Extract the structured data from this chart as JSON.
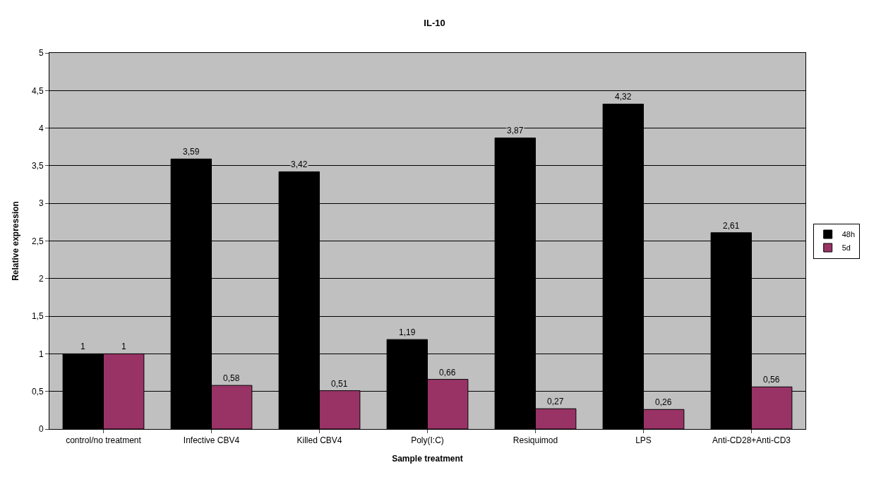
{
  "chart_data": {
    "type": "bar",
    "title": "IL-10",
    "xlabel": "Sample treatment",
    "ylabel": "Relative expression",
    "categories": [
      "control/no treatment",
      "Infective CBV4",
      "Killed CBV4",
      "Poly(I:C)",
      "Resiquimod",
      "LPS",
      "Anti-CD28+Anti-CD3"
    ],
    "series": [
      {
        "name": "48h",
        "color": "#000000",
        "values": [
          1,
          3.59,
          3.42,
          1.19,
          3.87,
          4.32,
          2.61
        ],
        "value_labels": [
          "1",
          "3,59",
          "3,42",
          "1,19",
          "3,87",
          "4,32",
          "2,61"
        ]
      },
      {
        "name": "5d",
        "color": "#993366",
        "values": [
          1,
          0.58,
          0.51,
          0.66,
          0.27,
          0.26,
          0.56
        ],
        "value_labels": [
          "1",
          "0,58",
          "0,51",
          "0,66",
          "0,27",
          "0,26",
          "0,56"
        ]
      }
    ],
    "ylim": [
      0,
      5
    ],
    "yticks": [
      0,
      {
        "value": 0.5,
        "label": "0,5"
      },
      1,
      {
        "value": 1.5,
        "label": "1,5"
      },
      2,
      {
        "value": 2.5,
        "label": "2,5"
      },
      3,
      {
        "value": 3.5,
        "label": "3,5"
      },
      4,
      {
        "value": 4.5,
        "label": "4,5"
      },
      5
    ],
    "grid": "y",
    "legend": "right"
  }
}
